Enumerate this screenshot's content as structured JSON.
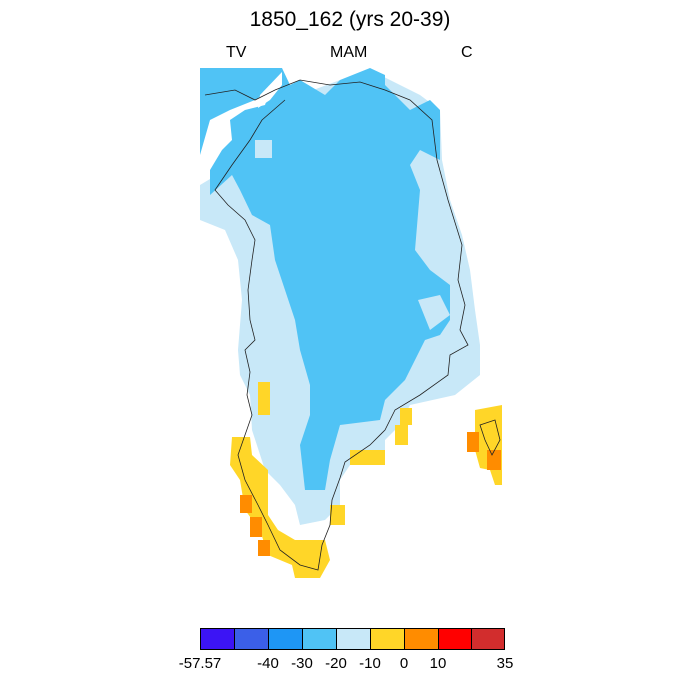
{
  "title": "1850_162 (yrs 20-39)",
  "left_label": "TV",
  "center_label": "MAM",
  "right_label": "C",
  "colorbar": {
    "colors": [
      "#3c14f5",
      "#3b5fe8",
      "#1e96f5",
      "#50c3f5",
      "#c8e8f8",
      "#ffd628",
      "#ff8c00",
      "#ff0000",
      "#d22d2d"
    ],
    "labels": [
      "-57.57",
      "-40",
      "-30",
      "-20",
      "-10",
      "0",
      "10",
      "35"
    ]
  },
  "map": {
    "region": "Greenland",
    "colors": {
      "very_cold": "#50c3f5",
      "cold": "#c8e8f8",
      "warm": "#ffd628",
      "warmer": "#ff8c00"
    }
  }
}
